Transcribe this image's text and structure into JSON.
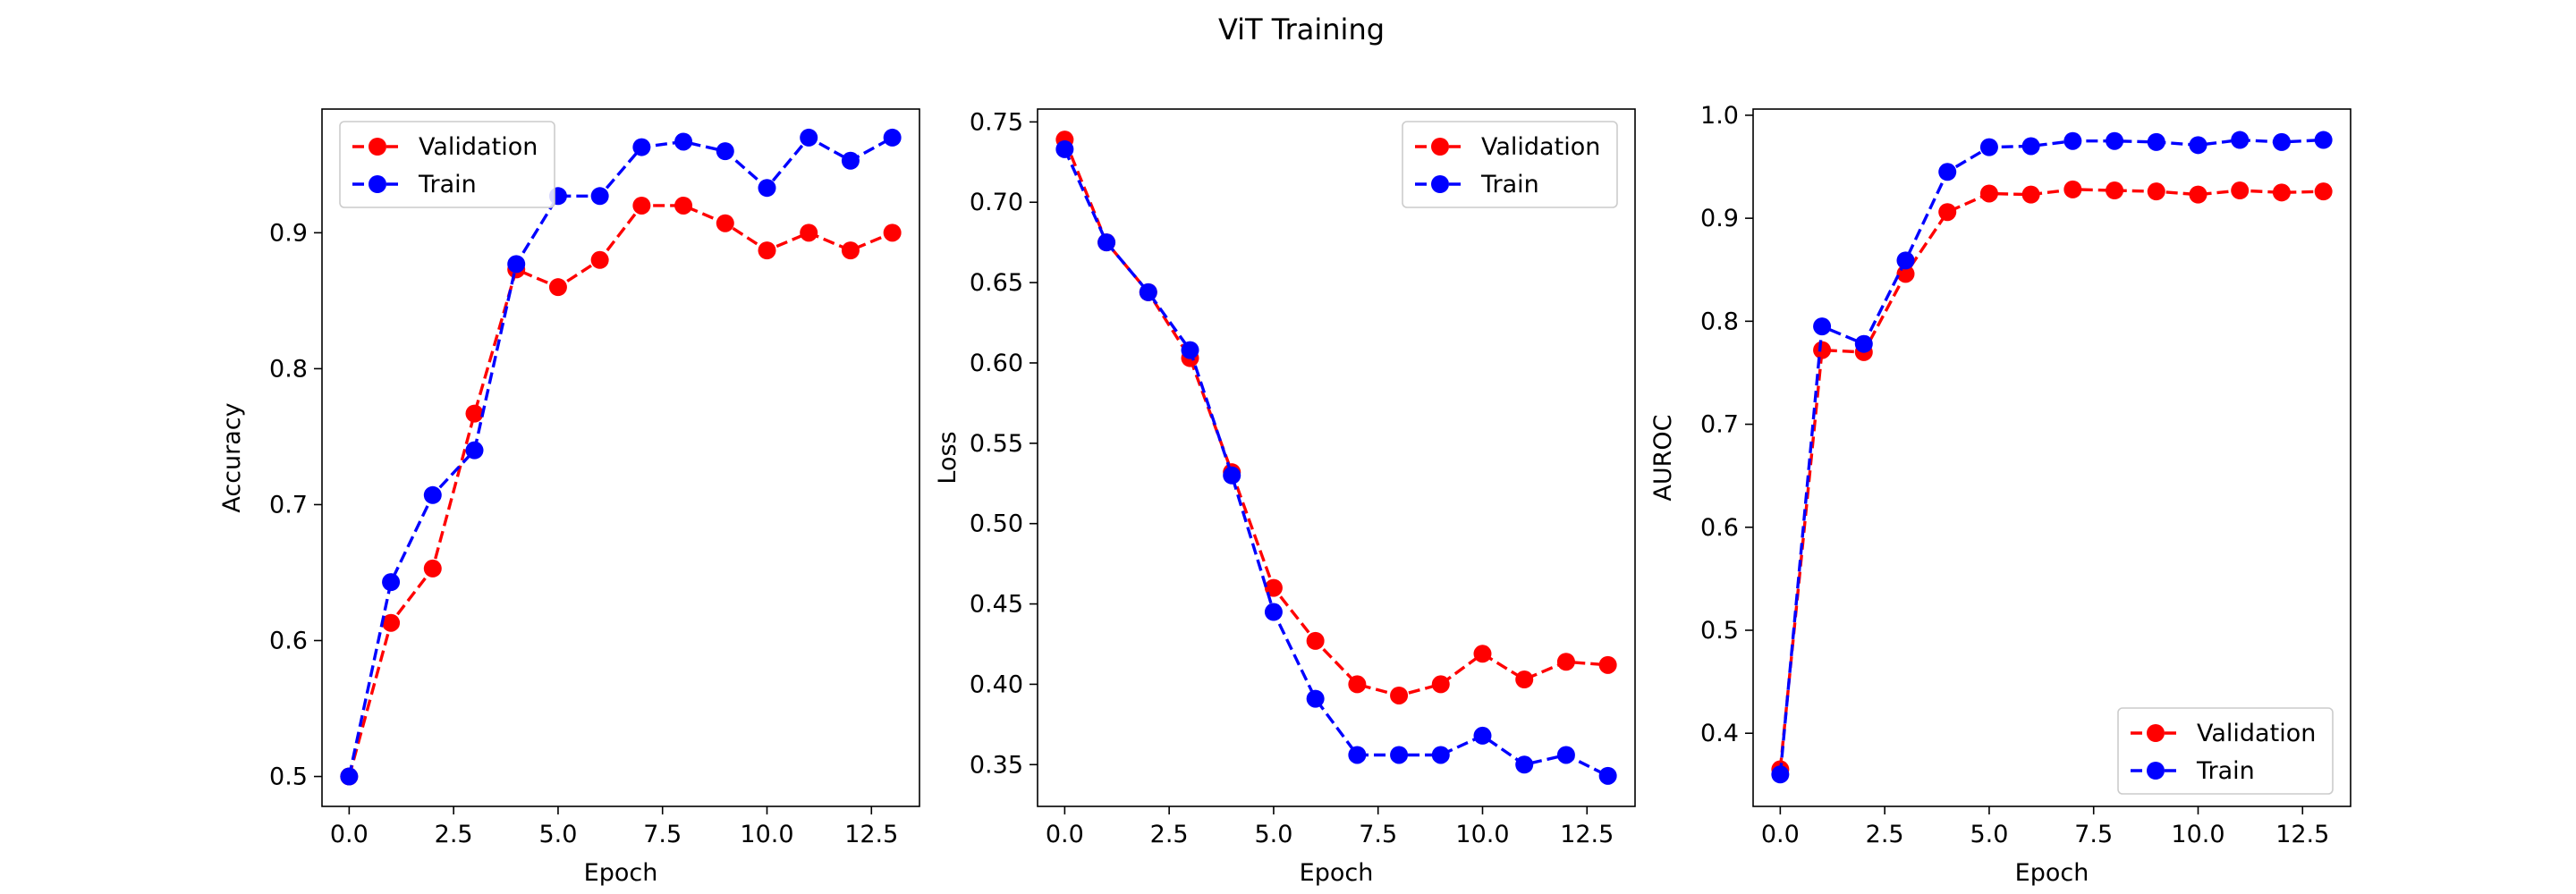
{
  "figure": {
    "title": "ViT Training"
  },
  "colors": {
    "validation": "#ff0000",
    "train": "#0000ff"
  },
  "chart_data": [
    {
      "type": "line",
      "xlabel": "Epoch",
      "ylabel": "Accuracy",
      "xlim": [
        -0.65,
        13.65
      ],
      "ylim": [
        0.478,
        0.991
      ],
      "xticks": [
        0.0,
        2.5,
        5.0,
        7.5,
        10.0,
        12.5
      ],
      "xtick_labels": [
        "0.0",
        "2.5",
        "5.0",
        "7.5",
        "10.0",
        "12.5"
      ],
      "yticks": [
        0.5,
        0.6,
        0.7,
        0.8,
        0.9
      ],
      "ytick_labels": [
        "0.5",
        "0.6",
        "0.7",
        "0.8",
        "0.9"
      ],
      "legend_position": "upper-left",
      "grid": false,
      "x": [
        0,
        1,
        2,
        3,
        4,
        5,
        6,
        7,
        8,
        9,
        10,
        11,
        12,
        13
      ],
      "series": [
        {
          "name": "Validation",
          "color": "#ff0000",
          "values": [
            0.5,
            0.613,
            0.653,
            0.767,
            0.873,
            0.86,
            0.88,
            0.92,
            0.92,
            0.907,
            0.887,
            0.9,
            0.887,
            0.9
          ]
        },
        {
          "name": "Train",
          "color": "#0000ff",
          "values": [
            0.5,
            0.643,
            0.707,
            0.74,
            0.877,
            0.927,
            0.927,
            0.963,
            0.967,
            0.96,
            0.933,
            0.97,
            0.953,
            0.97
          ]
        }
      ]
    },
    {
      "type": "line",
      "xlabel": "Epoch",
      "ylabel": "Loss",
      "xlim": [
        -0.65,
        13.65
      ],
      "ylim": [
        0.324,
        0.758
      ],
      "xticks": [
        0.0,
        2.5,
        5.0,
        7.5,
        10.0,
        12.5
      ],
      "xtick_labels": [
        "0.0",
        "2.5",
        "5.0",
        "7.5",
        "10.0",
        "12.5"
      ],
      "yticks": [
        0.35,
        0.4,
        0.45,
        0.5,
        0.55,
        0.6,
        0.65,
        0.7,
        0.75
      ],
      "ytick_labels": [
        "0.35",
        "0.40",
        "0.45",
        "0.50",
        "0.55",
        "0.60",
        "0.65",
        "0.70",
        "0.75"
      ],
      "legend_position": "upper-right",
      "grid": false,
      "x": [
        0,
        1,
        2,
        3,
        4,
        5,
        6,
        7,
        8,
        9,
        10,
        11,
        12,
        13
      ],
      "series": [
        {
          "name": "Validation",
          "color": "#ff0000",
          "values": [
            0.739,
            0.675,
            0.644,
            0.603,
            0.532,
            0.46,
            0.427,
            0.4,
            0.393,
            0.4,
            0.419,
            0.403,
            0.414,
            0.412
          ]
        },
        {
          "name": "Train",
          "color": "#0000ff",
          "values": [
            0.733,
            0.675,
            0.644,
            0.608,
            0.53,
            0.445,
            0.391,
            0.356,
            0.356,
            0.356,
            0.368,
            0.35,
            0.356,
            0.343
          ]
        }
      ]
    },
    {
      "type": "line",
      "xlabel": "Epoch",
      "ylabel": "AUROC",
      "xlim": [
        -0.65,
        13.65
      ],
      "ylim": [
        0.329,
        1.006
      ],
      "xticks": [
        0.0,
        2.5,
        5.0,
        7.5,
        10.0,
        12.5
      ],
      "xtick_labels": [
        "0.0",
        "2.5",
        "5.0",
        "7.5",
        "10.0",
        "12.5"
      ],
      "yticks": [
        0.4,
        0.5,
        0.6,
        0.7,
        0.8,
        0.9,
        1.0
      ],
      "ytick_labels": [
        "0.4",
        "0.5",
        "0.6",
        "0.7",
        "0.8",
        "0.9",
        "1.0"
      ],
      "legend_position": "lower-right",
      "grid": false,
      "x": [
        0,
        1,
        2,
        3,
        4,
        5,
        6,
        7,
        8,
        9,
        10,
        11,
        12,
        13
      ],
      "series": [
        {
          "name": "Validation",
          "color": "#ff0000",
          "values": [
            0.365,
            0.772,
            0.77,
            0.846,
            0.906,
            0.924,
            0.923,
            0.928,
            0.927,
            0.926,
            0.923,
            0.927,
            0.925,
            0.926
          ]
        },
        {
          "name": "Train",
          "color": "#0000ff",
          "values": [
            0.36,
            0.795,
            0.778,
            0.859,
            0.945,
            0.969,
            0.97,
            0.975,
            0.975,
            0.974,
            0.971,
            0.976,
            0.974,
            0.976
          ]
        }
      ]
    }
  ]
}
